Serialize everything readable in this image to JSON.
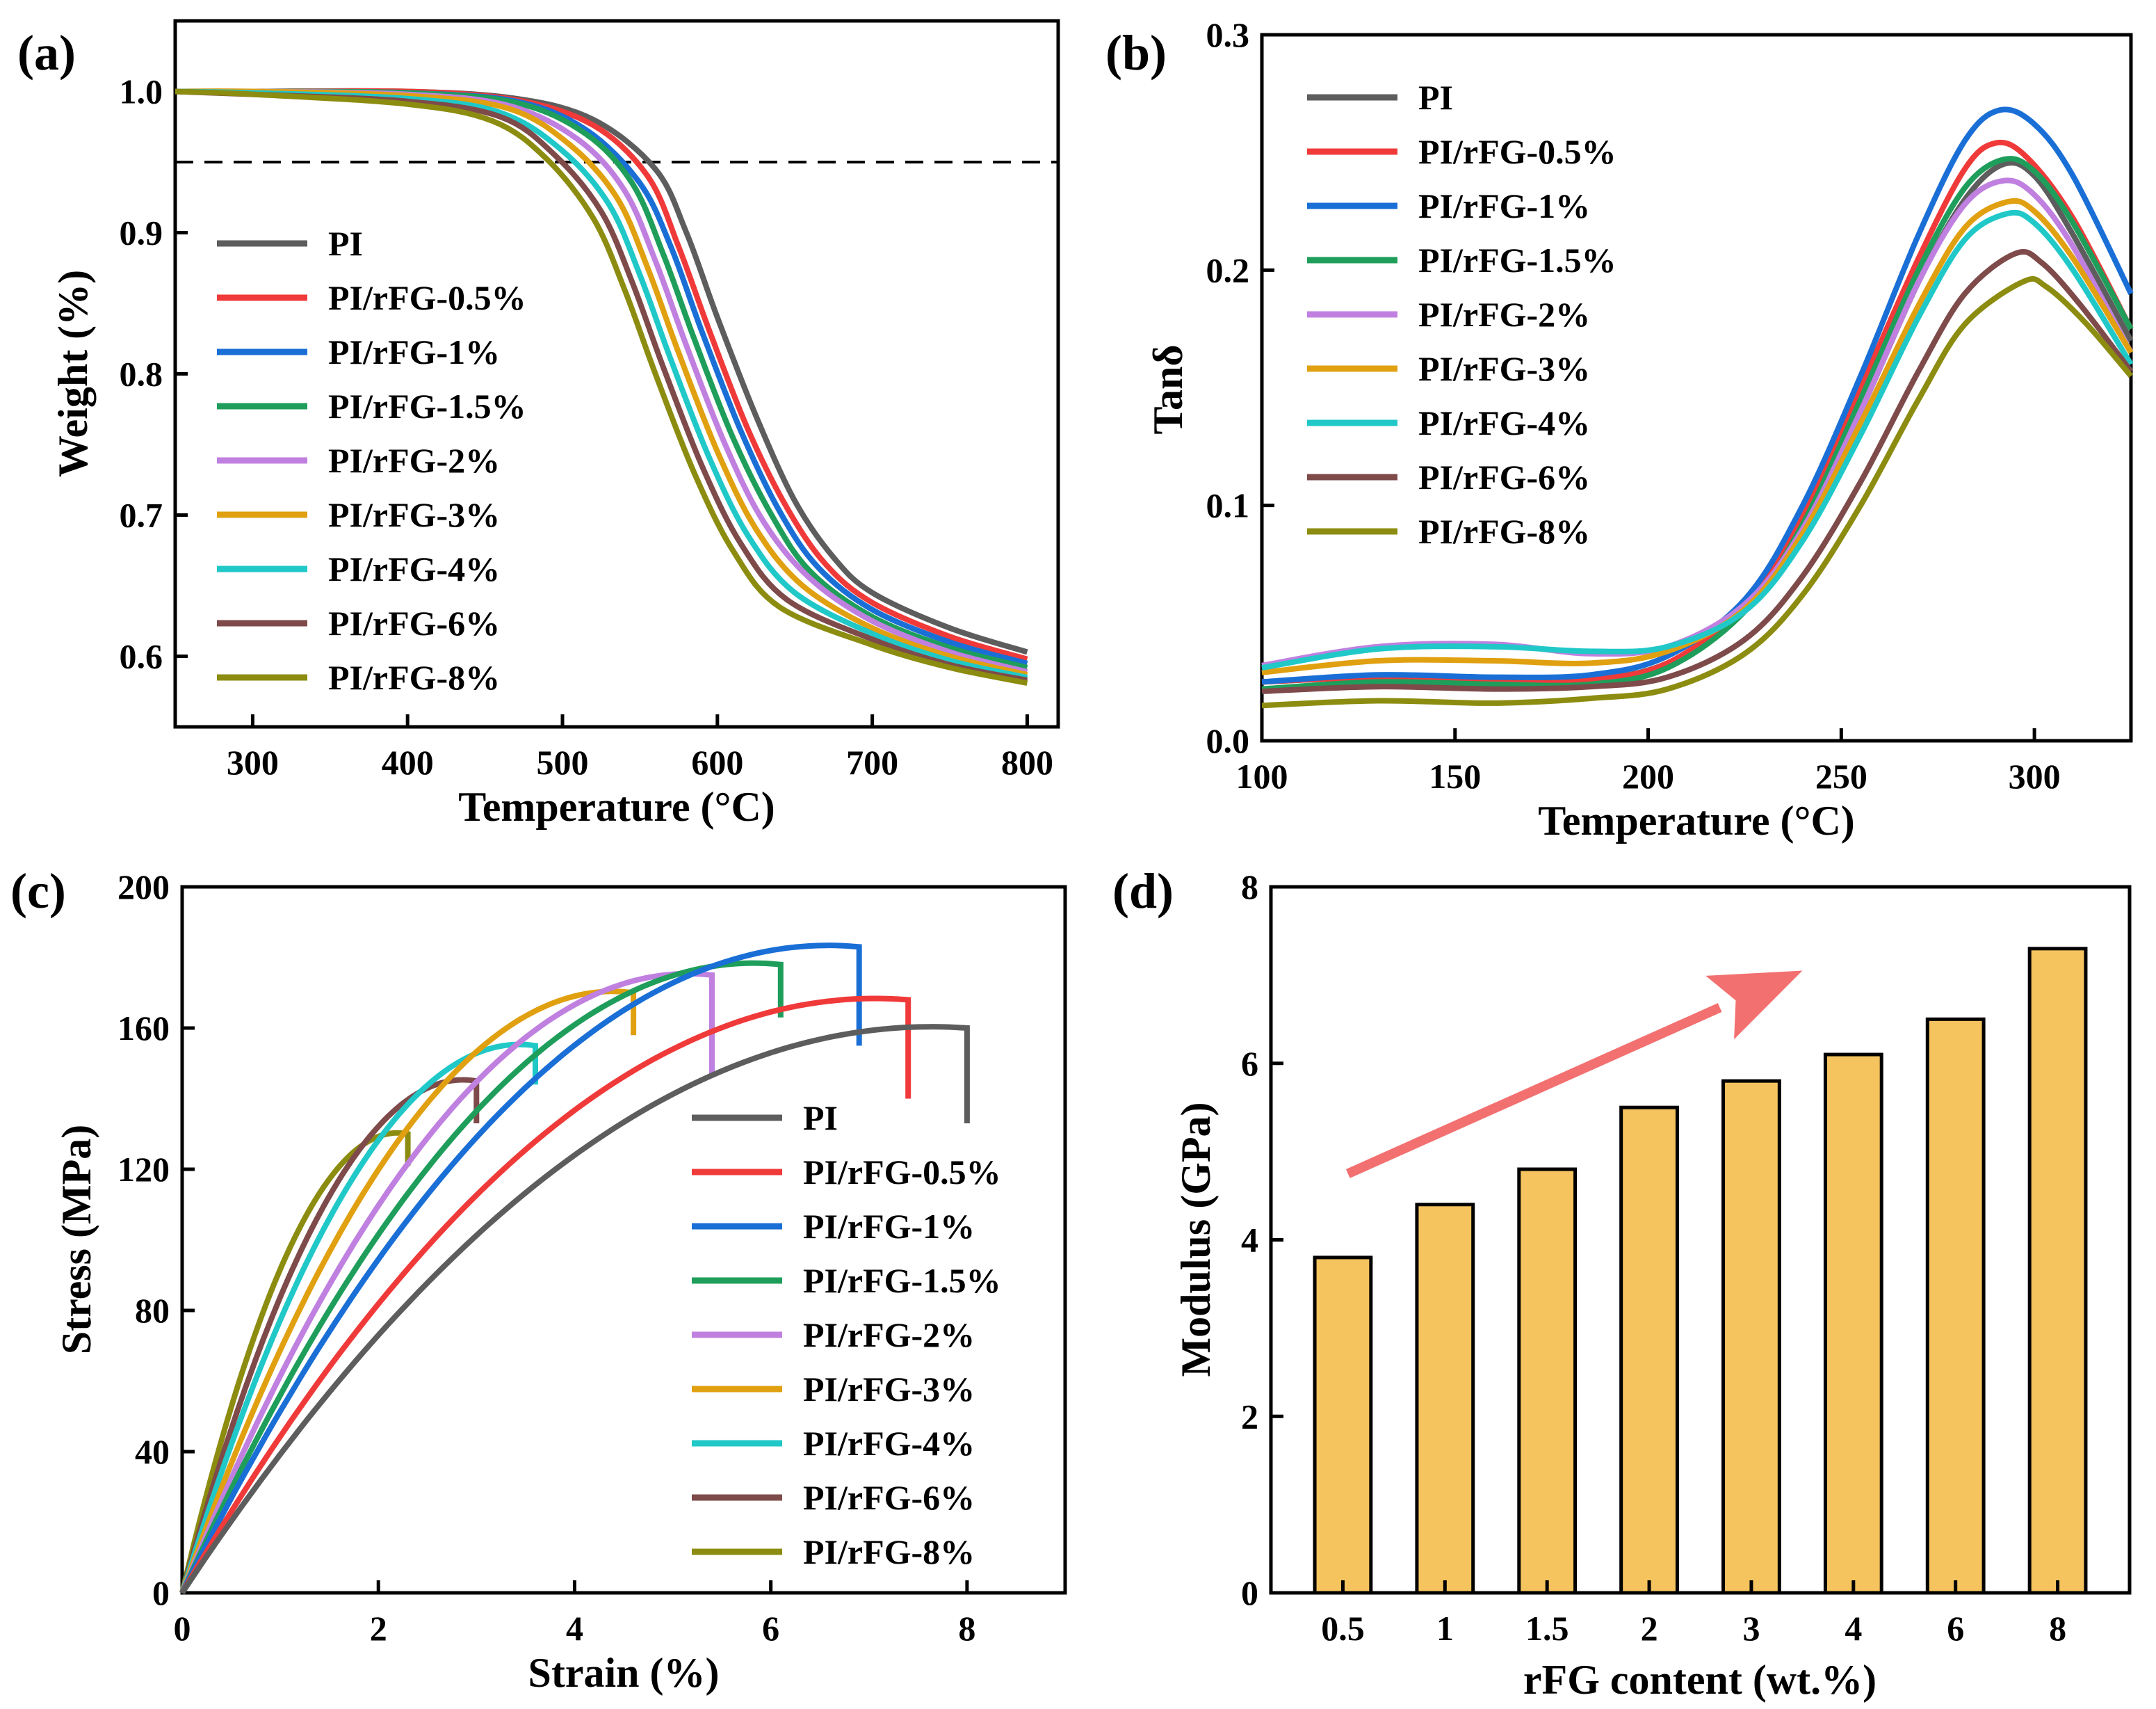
{
  "colors": {
    "PI": "#5d5d5d",
    "PI/rFG-0.5%": "#f03a3a",
    "PI/rFG-1%": "#1a6fd6",
    "PI/rFG-1.5%": "#1e9e5a",
    "PI/rFG-2%": "#c080e0",
    "PI/rFG-3%": "#e0a010",
    "PI/rFG-4%": "#20c8c8",
    "PI/rFG-6%": "#7e4a4a",
    "PI/rFG-8%": "#8c8c10",
    "bar_fill": "#f5c45e",
    "arrow": "#f37070"
  },
  "chart_data": [
    {
      "panel": "(a)",
      "type": "line",
      "xlabel": "Temperature (°C)",
      "ylabel": "Weight (%)",
      "xlim": [
        250,
        820
      ],
      "ylim": [
        0.55,
        1.05
      ],
      "xticks": [
        "300",
        "400",
        "500",
        "600",
        "700",
        "800"
      ],
      "yticks": [
        "0.6",
        "0.7",
        "0.8",
        "0.9",
        "1.0"
      ],
      "reference_line": {
        "y": 0.95,
        "style": "dashed"
      },
      "legend": [
        "PI",
        "PI/rFG-0.5%",
        "PI/rFG-1%",
        "PI/rFG-1.5%",
        "PI/rFG-2%",
        "PI/rFG-3%",
        "PI/rFG-4%",
        "PI/rFG-6%",
        "PI/rFG-8%"
      ],
      "series": [
        {
          "name": "PI",
          "x": [
            250,
            300,
            400,
            470,
            520,
            560,
            580,
            600,
            625,
            650,
            675,
            700,
            750,
            800
          ],
          "values": [
            1.0,
            1.0,
            1.0,
            0.995,
            0.98,
            0.945,
            0.9,
            0.84,
            0.77,
            0.71,
            0.67,
            0.645,
            0.62,
            0.603
          ]
        },
        {
          "name": "PI/rFG-0.5%",
          "x": [
            250,
            300,
            400,
            470,
            520,
            555,
            575,
            595,
            620,
            645,
            670,
            700,
            750,
            800
          ],
          "values": [
            1.0,
            1.0,
            1.0,
            0.994,
            0.976,
            0.94,
            0.89,
            0.83,
            0.76,
            0.705,
            0.665,
            0.638,
            0.614,
            0.598
          ]
        },
        {
          "name": "PI/rFG-1%",
          "x": [
            250,
            300,
            400,
            470,
            515,
            550,
            570,
            590,
            615,
            640,
            665,
            700,
            750,
            800
          ],
          "values": [
            1.0,
            1.0,
            0.999,
            0.993,
            0.973,
            0.935,
            0.89,
            0.83,
            0.76,
            0.703,
            0.663,
            0.633,
            0.61,
            0.595
          ]
        },
        {
          "name": "PI/rFG-1.5%",
          "x": [
            250,
            300,
            400,
            470,
            515,
            545,
            565,
            585,
            610,
            635,
            660,
            700,
            750,
            800
          ],
          "values": [
            1.0,
            1.0,
            0.999,
            0.992,
            0.97,
            0.935,
            0.885,
            0.825,
            0.755,
            0.7,
            0.66,
            0.628,
            0.606,
            0.592
          ]
        },
        {
          "name": "PI/rFG-2%",
          "x": [
            250,
            300,
            400,
            465,
            510,
            540,
            560,
            580,
            605,
            630,
            660,
            700,
            750,
            800
          ],
          "values": [
            1.0,
            1.0,
            0.998,
            0.99,
            0.966,
            0.93,
            0.88,
            0.82,
            0.75,
            0.695,
            0.655,
            0.625,
            0.603,
            0.589
          ]
        },
        {
          "name": "PI/rFG-3%",
          "x": [
            250,
            300,
            400,
            465,
            505,
            535,
            555,
            575,
            600,
            625,
            655,
            700,
            750,
            800
          ],
          "values": [
            1.0,
            1.0,
            0.997,
            0.988,
            0.962,
            0.925,
            0.875,
            0.815,
            0.745,
            0.69,
            0.65,
            0.62,
            0.6,
            0.587
          ]
        },
        {
          "name": "PI/rFG-4%",
          "x": [
            250,
            300,
            400,
            460,
            500,
            530,
            550,
            570,
            595,
            620,
            650,
            700,
            750,
            800
          ],
          "values": [
            1.0,
            0.999,
            0.995,
            0.985,
            0.958,
            0.92,
            0.87,
            0.81,
            0.74,
            0.685,
            0.645,
            0.616,
            0.597,
            0.585
          ]
        },
        {
          "name": "PI/rFG-6%",
          "x": [
            250,
            300,
            400,
            460,
            495,
            525,
            545,
            565,
            590,
            615,
            645,
            700,
            750,
            800
          ],
          "values": [
            1.0,
            0.998,
            0.993,
            0.982,
            0.955,
            0.915,
            0.865,
            0.805,
            0.735,
            0.68,
            0.64,
            0.612,
            0.594,
            0.583
          ]
        },
        {
          "name": "PI/rFG-8%",
          "x": [
            250,
            300,
            400,
            455,
            490,
            520,
            540,
            560,
            585,
            610,
            640,
            700,
            750,
            800
          ],
          "values": [
            1.0,
            0.998,
            0.991,
            0.979,
            0.952,
            0.91,
            0.86,
            0.8,
            0.73,
            0.675,
            0.635,
            0.608,
            0.592,
            0.581
          ]
        }
      ]
    },
    {
      "panel": "(b)",
      "type": "line",
      "xlabel": "Temperature (°C)",
      "ylabel": "Tanδ",
      "xlim": [
        100,
        325
      ],
      "ylim": [
        0.0,
        0.3
      ],
      "xticks": [
        "100",
        "150",
        "200",
        "250",
        "300"
      ],
      "yticks": [
        "0.0",
        "0.1",
        "0.2",
        "0.3"
      ],
      "legend": [
        "PI",
        "PI/rFG-0.5%",
        "PI/rFG-1%",
        "PI/rFG-1.5%",
        "PI/rFG-2%",
        "PI/rFG-3%",
        "PI/rFG-4%",
        "PI/rFG-6%",
        "PI/rFG-8%"
      ],
      "series": [
        {
          "name": "PI",
          "x": [
            100,
            130,
            160,
            185,
            205,
            225,
            240,
            255,
            270,
            282,
            292,
            300,
            310,
            325
          ],
          "values": [
            0.025,
            0.027,
            0.026,
            0.026,
            0.033,
            0.055,
            0.09,
            0.14,
            0.195,
            0.23,
            0.245,
            0.24,
            0.215,
            0.17
          ]
        },
        {
          "name": "PI/rFG-0.5%",
          "x": [
            100,
            130,
            160,
            185,
            205,
            225,
            240,
            255,
            270,
            282,
            290,
            298,
            310,
            325
          ],
          "values": [
            0.025,
            0.027,
            0.026,
            0.026,
            0.033,
            0.058,
            0.095,
            0.15,
            0.205,
            0.243,
            0.254,
            0.248,
            0.222,
            0.175
          ]
        },
        {
          "name": "PI/rFG-1%",
          "x": [
            100,
            130,
            160,
            185,
            205,
            225,
            240,
            255,
            270,
            282,
            291,
            300,
            310,
            325
          ],
          "values": [
            0.025,
            0.028,
            0.027,
            0.028,
            0.036,
            0.06,
            0.1,
            0.155,
            0.215,
            0.255,
            0.268,
            0.262,
            0.24,
            0.19
          ]
        },
        {
          "name": "PI/rFG-1.5%",
          "x": [
            100,
            130,
            160,
            185,
            205,
            225,
            240,
            255,
            270,
            282,
            292,
            300,
            310,
            325
          ],
          "values": [
            0.022,
            0.025,
            0.024,
            0.024,
            0.031,
            0.055,
            0.092,
            0.145,
            0.2,
            0.235,
            0.247,
            0.242,
            0.22,
            0.175
          ]
        },
        {
          "name": "PI/rFG-2%",
          "x": [
            100,
            130,
            160,
            185,
            205,
            225,
            240,
            255,
            270,
            282,
            292,
            300,
            310,
            325
          ],
          "values": [
            0.032,
            0.04,
            0.041,
            0.037,
            0.04,
            0.058,
            0.09,
            0.14,
            0.195,
            0.228,
            0.238,
            0.232,
            0.21,
            0.165
          ]
        },
        {
          "name": "PI/rFG-3%",
          "x": [
            100,
            130,
            160,
            185,
            205,
            225,
            240,
            255,
            270,
            282,
            293,
            300,
            310,
            325
          ],
          "values": [
            0.029,
            0.034,
            0.034,
            0.033,
            0.038,
            0.056,
            0.088,
            0.135,
            0.185,
            0.218,
            0.229,
            0.225,
            0.205,
            0.165
          ]
        },
        {
          "name": "PI/rFG-4%",
          "x": [
            100,
            130,
            160,
            185,
            205,
            225,
            240,
            255,
            270,
            282,
            293,
            300,
            310,
            325
          ],
          "values": [
            0.031,
            0.039,
            0.04,
            0.038,
            0.04,
            0.055,
            0.085,
            0.13,
            0.18,
            0.213,
            0.224,
            0.22,
            0.2,
            0.16
          ]
        },
        {
          "name": "PI/rFG-6%",
          "x": [
            100,
            130,
            160,
            185,
            205,
            225,
            240,
            255,
            270,
            282,
            295,
            302,
            312,
            325
          ],
          "values": [
            0.021,
            0.023,
            0.022,
            0.023,
            0.027,
            0.043,
            0.07,
            0.11,
            0.157,
            0.19,
            0.207,
            0.203,
            0.185,
            0.157
          ]
        },
        {
          "name": "PI/rFG-8%",
          "x": [
            100,
            130,
            160,
            185,
            205,
            225,
            240,
            255,
            270,
            282,
            297,
            303,
            313,
            325
          ],
          "values": [
            0.015,
            0.017,
            0.016,
            0.018,
            0.022,
            0.037,
            0.062,
            0.1,
            0.145,
            0.177,
            0.195,
            0.193,
            0.178,
            0.155
          ]
        }
      ]
    },
    {
      "panel": "(c)",
      "type": "line",
      "xlabel": "Strain (%)",
      "ylabel": "Stress (MPa)",
      "xlim": [
        0,
        9
      ],
      "ylim": [
        0,
        200
      ],
      "xticks": [
        "0",
        "2",
        "4",
        "6",
        "8"
      ],
      "yticks": [
        "0",
        "40",
        "80",
        "120",
        "160",
        "200"
      ],
      "legend": [
        "PI",
        "PI/rFG-0.5%",
        "PI/rFG-1%",
        "PI/rFG-1.5%",
        "PI/rFG-2%",
        "PI/rFG-3%",
        "PI/rFG-4%",
        "PI/rFG-6%",
        "PI/rFG-8%"
      ],
      "series": [
        {
          "name": "PI",
          "break_strain": 8.0,
          "break_stress": 160,
          "drop_to": 133
        },
        {
          "name": "PI/rFG-0.5%",
          "break_strain": 7.4,
          "break_stress": 168,
          "drop_to": 140
        },
        {
          "name": "PI/rFG-1%",
          "break_strain": 6.9,
          "break_stress": 183,
          "drop_to": 155
        },
        {
          "name": "PI/rFG-1.5%",
          "break_strain": 6.1,
          "break_stress": 178,
          "drop_to": 163
        },
        {
          "name": "PI/rFG-2%",
          "break_strain": 5.4,
          "break_stress": 175,
          "drop_to": 147
        },
        {
          "name": "PI/rFG-3%",
          "break_strain": 4.6,
          "break_stress": 170,
          "drop_to": 158
        },
        {
          "name": "PI/rFG-4%",
          "break_strain": 3.6,
          "break_stress": 155,
          "drop_to": 144
        },
        {
          "name": "PI/rFG-6%",
          "break_strain": 3.0,
          "break_stress": 145,
          "drop_to": 133
        },
        {
          "name": "PI/rFG-8%",
          "break_strain": 2.3,
          "break_stress": 130,
          "drop_to": 121
        }
      ]
    },
    {
      "panel": "(d)",
      "type": "bar",
      "xlabel": "rFG content (wt.%)",
      "ylabel": "Modulus (GPa)",
      "ylim": [
        0,
        8
      ],
      "yticks": [
        "0",
        "2",
        "4",
        "6",
        "8"
      ],
      "categories": [
        "0.5",
        "1",
        "1.5",
        "2",
        "3",
        "4",
        "6",
        "8"
      ],
      "values": [
        3.8,
        4.4,
        4.8,
        5.5,
        5.8,
        6.1,
        6.5,
        7.3
      ],
      "annotation": "increasing trend arrow"
    }
  ]
}
